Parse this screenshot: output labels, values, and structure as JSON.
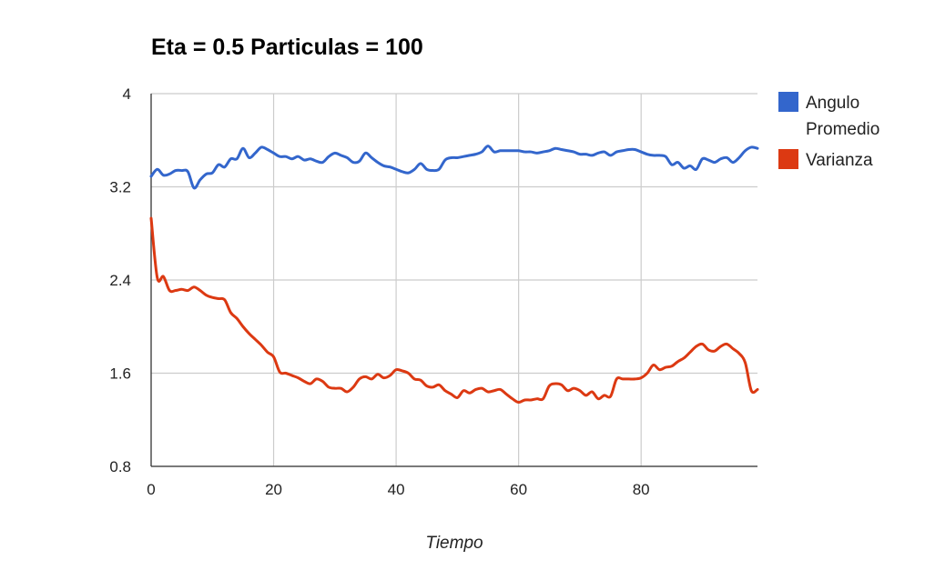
{
  "chart_data": {
    "type": "line",
    "title": "Eta = 0.5 Particulas = 100",
    "xlabel": "Tiempo",
    "ylabel": "",
    "xlim": [
      0,
      99
    ],
    "ylim": [
      0.8,
      4
    ],
    "xticks": [
      "0",
      "20",
      "40",
      "60",
      "80"
    ],
    "xtick_values": [
      0,
      20,
      40,
      60,
      80
    ],
    "yticks": [
      "0.8",
      "1.6",
      "2.4",
      "3.2",
      "4"
    ],
    "ytick_values": [
      0.8,
      1.6,
      2.4,
      3.2,
      4
    ],
    "grid": true,
    "legend_position": "right",
    "x": [
      0,
      1,
      2,
      3,
      4,
      5,
      6,
      7,
      8,
      9,
      10,
      11,
      12,
      13,
      14,
      15,
      16,
      17,
      18,
      19,
      20,
      21,
      22,
      23,
      24,
      25,
      26,
      27,
      28,
      29,
      30,
      31,
      32,
      33,
      34,
      35,
      36,
      37,
      38,
      39,
      40,
      41,
      42,
      43,
      44,
      45,
      46,
      47,
      48,
      49,
      50,
      51,
      52,
      53,
      54,
      55,
      56,
      57,
      58,
      59,
      60,
      61,
      62,
      63,
      64,
      65,
      66,
      67,
      68,
      69,
      70,
      71,
      72,
      73,
      74,
      75,
      76,
      77,
      78,
      79,
      80,
      81,
      82,
      83,
      84,
      85,
      86,
      87,
      88,
      89,
      90,
      91,
      92,
      93,
      94,
      95,
      96,
      97,
      98,
      99
    ],
    "series": [
      {
        "name": "Angulo Promedio",
        "color": "#3366cc",
        "values": [
          3.29,
          3.35,
          3.3,
          3.31,
          3.34,
          3.34,
          3.33,
          3.19,
          3.26,
          3.31,
          3.32,
          3.39,
          3.37,
          3.44,
          3.44,
          3.53,
          3.45,
          3.49,
          3.54,
          3.52,
          3.49,
          3.46,
          3.46,
          3.44,
          3.46,
          3.43,
          3.44,
          3.42,
          3.41,
          3.46,
          3.49,
          3.47,
          3.45,
          3.41,
          3.42,
          3.49,
          3.45,
          3.41,
          3.38,
          3.37,
          3.35,
          3.33,
          3.32,
          3.35,
          3.4,
          3.35,
          3.34,
          3.35,
          3.43,
          3.45,
          3.45,
          3.46,
          3.47,
          3.48,
          3.5,
          3.55,
          3.5,
          3.51,
          3.51,
          3.51,
          3.51,
          3.5,
          3.5,
          3.49,
          3.5,
          3.51,
          3.53,
          3.52,
          3.51,
          3.5,
          3.48,
          3.48,
          3.47,
          3.49,
          3.5,
          3.47,
          3.5,
          3.51,
          3.52,
          3.52,
          3.5,
          3.48,
          3.47,
          3.47,
          3.46,
          3.39,
          3.41,
          3.36,
          3.38,
          3.35,
          3.44,
          3.43,
          3.41,
          3.44,
          3.45,
          3.41,
          3.45,
          3.51,
          3.54,
          3.53
        ]
      },
      {
        "name": "Varianza",
        "color": "#dc3912",
        "values": [
          2.93,
          2.42,
          2.43,
          2.31,
          2.31,
          2.32,
          2.31,
          2.34,
          2.31,
          2.27,
          2.25,
          2.24,
          2.23,
          2.12,
          2.07,
          2.0,
          1.94,
          1.89,
          1.84,
          1.78,
          1.74,
          1.61,
          1.6,
          1.58,
          1.56,
          1.53,
          1.51,
          1.55,
          1.53,
          1.48,
          1.47,
          1.47,
          1.44,
          1.48,
          1.55,
          1.57,
          1.55,
          1.59,
          1.56,
          1.58,
          1.63,
          1.62,
          1.6,
          1.55,
          1.54,
          1.49,
          1.48,
          1.5,
          1.45,
          1.42,
          1.39,
          1.45,
          1.43,
          1.46,
          1.47,
          1.44,
          1.45,
          1.46,
          1.42,
          1.38,
          1.35,
          1.37,
          1.37,
          1.38,
          1.38,
          1.49,
          1.51,
          1.5,
          1.45,
          1.47,
          1.45,
          1.41,
          1.44,
          1.38,
          1.41,
          1.4,
          1.55,
          1.55,
          1.55,
          1.55,
          1.56,
          1.6,
          1.67,
          1.63,
          1.65,
          1.66,
          1.7,
          1.73,
          1.78,
          1.83,
          1.85,
          1.8,
          1.79,
          1.83,
          1.85,
          1.81,
          1.77,
          1.69,
          1.45,
          1.46
        ]
      }
    ]
  }
}
